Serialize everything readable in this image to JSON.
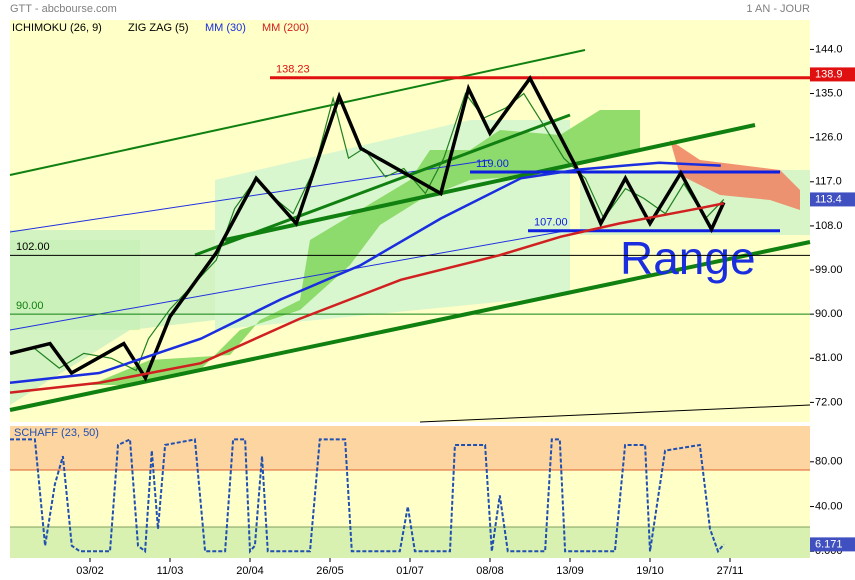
{
  "chart_data": [
    {
      "type": "line",
      "title": "GTT - abcbourse.com",
      "subtitle": "1 AN - JOUR",
      "ichimoku_label": "ICHIMOKU (26, 9)",
      "annotation": "Range",
      "xlim": [
        0,
        260
      ],
      "ylim": [
        68,
        150
      ],
      "yticks": [
        {
          "value": 144,
          "label": "144.0"
        },
        {
          "value": 135,
          "label": "135.0"
        },
        {
          "value": 126,
          "label": "126.0"
        },
        {
          "value": 117,
          "label": "117.0"
        },
        {
          "value": 108,
          "label": "108.0"
        },
        {
          "value": 99,
          "label": "99.00"
        },
        {
          "value": 90,
          "label": "90.00"
        },
        {
          "value": 81,
          "label": "81.00"
        },
        {
          "value": 72,
          "label": "72.00"
        }
      ],
      "levels": [
        {
          "value": 138.23,
          "label": "138.23",
          "color": "#e01010"
        },
        {
          "value": 119,
          "label": "119.00",
          "color": "#1020e0"
        },
        {
          "value": 107,
          "label": "107.00",
          "color": "#1020e0"
        },
        {
          "value": 102,
          "label": "102.00",
          "color": "#000000"
        },
        {
          "value": 90,
          "label": "90.00",
          "color": "#108010"
        }
      ],
      "markers": [
        {
          "value": 138.9,
          "color": "#e01010"
        },
        {
          "value": 113.4,
          "color": "#4050c0"
        }
      ],
      "series": [
        {
          "color": "#208020",
          "x": [
            0,
            8,
            16,
            24,
            33,
            41,
            45,
            52,
            58,
            67,
            73,
            80,
            86,
            92,
            99,
            105,
            110,
            115,
            122,
            128,
            135,
            141,
            148,
            154,
            161,
            167,
            174,
            180,
            187,
            193,
            200,
            206,
            213,
            219,
            226,
            232
          ],
          "values": [
            82,
            83,
            79,
            82,
            81,
            78.5,
            85,
            91,
            95,
            101,
            111.5,
            117.7,
            113.6,
            110.5,
            119.7,
            134,
            121.8,
            123.8,
            118,
            119.7,
            114.6,
            121.8,
            135,
            130,
            132,
            135,
            128,
            121.8,
            117.7,
            109.5,
            115.6,
            113.6,
            110.5,
            116.6,
            109.5,
            113.4
          ]
        },
        {
          "name": "ZIG ZAG (5)",
          "color": "#000000",
          "x": [
            0,
            13,
            20,
            37,
            44,
            52,
            67,
            80,
            93,
            107,
            114,
            140,
            149,
            156,
            169,
            185,
            192,
            200,
            208,
            218,
            228,
            232
          ],
          "values": [
            82,
            84,
            78,
            84,
            77,
            89.5,
            102.5,
            117.7,
            108.5,
            134.4,
            123.8,
            114.6,
            136,
            126.9,
            138.1,
            118.8,
            108.5,
            117.7,
            108.5,
            118.8,
            107.3,
            112.8
          ]
        },
        {
          "name": "MM (30)",
          "color": "#1a2ee0",
          "x": [
            0,
            29,
            62,
            88,
            114,
            140,
            166,
            185,
            211,
            231
          ],
          "values": [
            76,
            78,
            85,
            93,
            100,
            109.5,
            117.7,
            119.5,
            120.9,
            120.3
          ]
        },
        {
          "name": "MM (200)",
          "color": "#d02020",
          "x": [
            0,
            29,
            62,
            94,
            127,
            159,
            179,
            198,
            224,
            232
          ],
          "values": [
            74,
            76,
            80,
            89,
            97,
            102,
            105.8,
            108.5,
            111.6,
            112.6
          ]
        }
      ]
    },
    {
      "type": "line",
      "title": "SCHAFF (23, 50)",
      "xlim": [
        0,
        260
      ],
      "ylim": [
        -6,
        112
      ],
      "yticks": [
        {
          "value": 80,
          "label": "80.00"
        },
        {
          "value": 40,
          "label": "40.00"
        },
        {
          "value": 0,
          "label": "0.000"
        }
      ],
      "xticks": [
        {
          "value": 26,
          "label": "03/02"
        },
        {
          "value": 52,
          "label": "11/03"
        },
        {
          "value": 78,
          "label": "20/04"
        },
        {
          "value": 104,
          "label": "26/05"
        },
        {
          "value": 130,
          "label": "01/07"
        },
        {
          "value": 156,
          "label": "08/08"
        },
        {
          "value": 182,
          "label": "13/09"
        },
        {
          "value": 208,
          "label": "19/10"
        },
        {
          "value": 234,
          "label": "27/11"
        }
      ],
      "markers": [
        {
          "value": 6.171,
          "color": "#4050c0"
        }
      ],
      "series": [
        {
          "color": "#2050b0",
          "x": [
            0,
            8.1,
            11.4,
            14.6,
            17.2,
            20.1,
            22.7,
            32.5,
            35.1,
            39,
            41.6,
            43.9,
            46.1,
            48.1,
            50.4,
            60.1,
            63.4,
            69.9,
            72.5,
            76.4,
            78,
            79.6,
            81.9,
            83.8,
            97.5,
            100.7,
            108.9,
            111.1,
            126.7,
            129.3,
            131.6,
            143,
            144.6,
            154.4,
            156.6,
            159.2,
            161.8,
            173.9,
            176.1,
            178.7,
            180.4,
            196.6,
            199.9,
            206.4,
            208,
            212.9,
            224.2,
            227.5,
            230.1,
            232
          ],
          "values": [
            100,
            100,
            5,
            60,
            85,
            5,
            0,
            0,
            95,
            100,
            5,
            0,
            90,
            20,
            95,
            100,
            0,
            0,
            100,
            100,
            0,
            5,
            85,
            0,
            0,
            100,
            100,
            0,
            0,
            40,
            0,
            0,
            95,
            95,
            0,
            50,
            0,
            0,
            100,
            100,
            0,
            0,
            95,
            95,
            0,
            90,
            95,
            20,
            0,
            6.171
          ]
        }
      ]
    }
  ]
}
